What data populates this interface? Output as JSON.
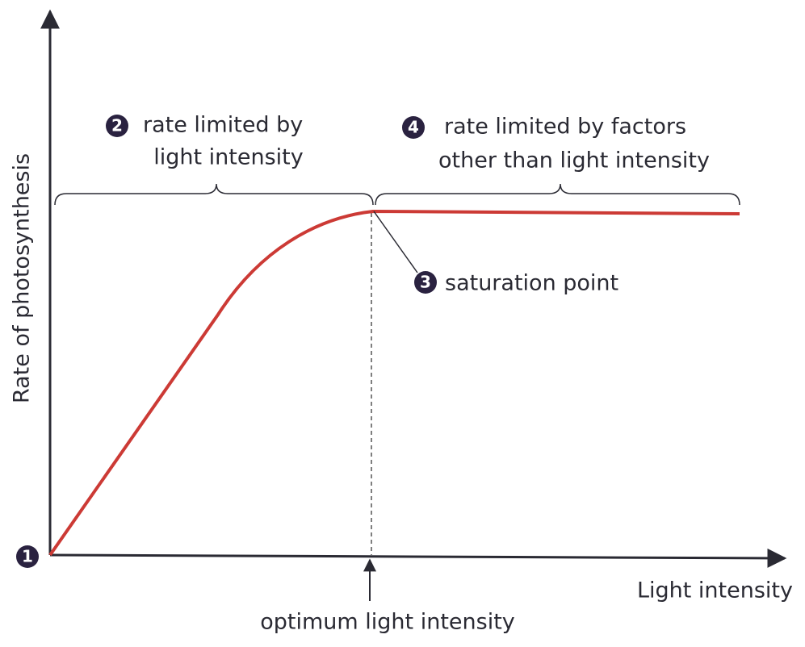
{
  "axes": {
    "y_label": "Rate of photosynthesis",
    "x_label": "Light intensity"
  },
  "annotations": [
    {
      "number": "1"
    },
    {
      "number": "2",
      "lines": [
        "rate limited by",
        "light intensity"
      ]
    },
    {
      "number": "3",
      "lines": [
        "saturation point"
      ]
    },
    {
      "number": "4",
      "lines": [
        "rate limited by factors",
        "other than light intensity"
      ]
    }
  ],
  "optimum_label": "optimum light intensity"
}
